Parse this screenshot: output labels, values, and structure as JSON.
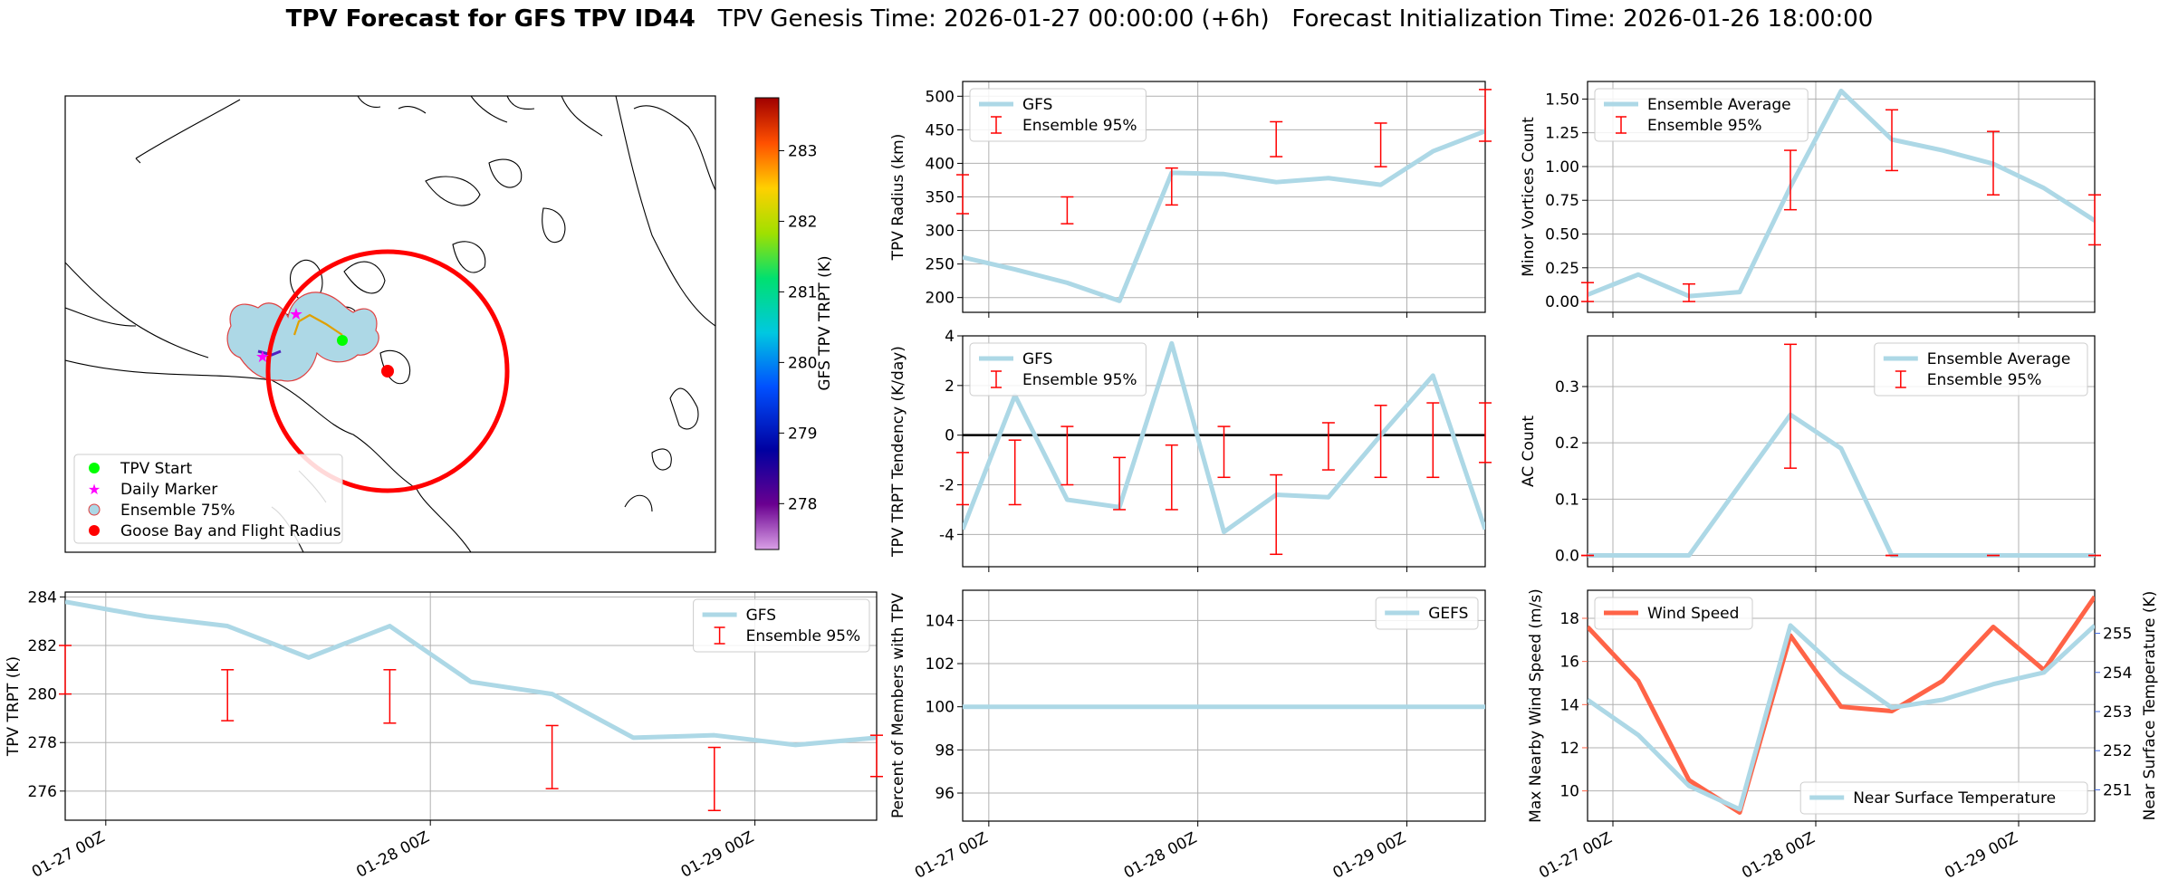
{
  "title": {
    "bold": "TPV Forecast for GFS TPV ID44",
    "rest": "   TPV Genesis Time: 2026-01-27 00:00:00 (+6h)   Forecast Initialization Time: 2026-01-26 18:00:00"
  },
  "colors": {
    "gfs_line": "#add8e6",
    "errorbar": "#ff0000",
    "wind": "#ff6347",
    "temp_axis": "#4169e1",
    "tpv_start": "#00ff00",
    "daily_marker": "#ff00ff",
    "ensemble_fill": "#add8e6",
    "goose_bay": "#ff0000",
    "zero_line": "#000000"
  },
  "map": {
    "colorbar_label": "GFS TPV TRPT (K)",
    "colorbar_ticks": [
      "278",
      "279",
      "280",
      "281",
      "282",
      "283"
    ],
    "legend": [
      "TPV Start",
      "Daily Marker",
      "Ensemble 75%",
      "Goose Bay and Flight Radius"
    ]
  },
  "x_ticks": [
    "01-27 00Z",
    "01-28 00Z",
    "01-29 00Z"
  ],
  "chart_data": [
    {
      "id": "trpt",
      "type": "line",
      "ylabel": "TPV TRPT (K)",
      "ylim": [
        274.8,
        284.2
      ],
      "yticks": [
        276,
        278,
        280,
        282,
        284
      ],
      "legend": [
        "GFS",
        "Ensemble 95%"
      ],
      "legend_pos": "top-right",
      "x": [
        -0.125,
        0.125,
        0.375,
        0.625,
        0.875,
        1.125,
        1.375,
        1.625,
        1.875,
        2.125,
        2.375
      ],
      "series": [
        {
          "name": "GFS",
          "values": [
            283.8,
            283.2,
            282.8,
            281.5,
            282.8,
            280.5,
            280.0,
            278.2,
            278.3,
            277.9,
            278.2
          ]
        }
      ],
      "errorbars": [
        {
          "x": -0.125,
          "low": 280.0,
          "high": 282.0
        },
        {
          "x": 0.375,
          "low": 278.9,
          "high": 281.0
        },
        {
          "x": 0.875,
          "low": 278.8,
          "high": 281.0
        },
        {
          "x": 1.375,
          "low": 276.1,
          "high": 278.7
        },
        {
          "x": 1.875,
          "low": 275.2,
          "high": 277.8
        },
        {
          "x": 2.375,
          "low": 276.6,
          "high": 278.3
        }
      ]
    },
    {
      "id": "radius",
      "type": "line",
      "ylabel": "TPV Radius (km)",
      "ylim": [
        178,
        522
      ],
      "yticks": [
        200,
        250,
        300,
        350,
        400,
        450,
        500
      ],
      "legend": [
        "GFS",
        "Ensemble 95%"
      ],
      "legend_pos": "top-left",
      "x": [
        -0.125,
        0.125,
        0.375,
        0.625,
        0.875,
        1.125,
        1.375,
        1.625,
        1.875,
        2.125,
        2.375
      ],
      "series": [
        {
          "name": "GFS",
          "values": [
            260,
            242,
            222,
            195,
            386,
            384,
            372,
            378,
            368,
            418,
            448
          ]
        }
      ],
      "errorbars": [
        {
          "x": -0.125,
          "low": 325,
          "high": 383
        },
        {
          "x": 0.375,
          "low": 310,
          "high": 350
        },
        {
          "x": 0.875,
          "low": 338,
          "high": 393
        },
        {
          "x": 1.375,
          "low": 410,
          "high": 462
        },
        {
          "x": 1.875,
          "low": 395,
          "high": 460
        },
        {
          "x": 2.375,
          "low": 433,
          "high": 510
        }
      ]
    },
    {
      "id": "tendency",
      "type": "line",
      "ylabel": "TPV TRPT Tendency (K/day)",
      "ylim": [
        -5.3,
        4.0
      ],
      "yticks": [
        -4,
        -2,
        0,
        2,
        4
      ],
      "legend": [
        "GFS",
        "Ensemble 95%"
      ],
      "legend_pos": "top-left",
      "hline": 0,
      "x": [
        -0.125,
        0.125,
        0.375,
        0.625,
        0.875,
        1.125,
        1.375,
        1.625,
        1.875,
        2.125,
        2.375
      ],
      "series": [
        {
          "name": "GFS",
          "values": [
            -3.8,
            1.6,
            -2.6,
            -2.9,
            3.7,
            -3.9,
            -2.4,
            -2.5,
            0.0,
            2.4,
            -3.8
          ]
        }
      ],
      "errorbars": [
        {
          "x": -0.125,
          "low": -2.8,
          "high": -0.7
        },
        {
          "x": 0.125,
          "low": -2.8,
          "high": -0.2
        },
        {
          "x": 0.375,
          "low": -2.0,
          "high": 0.35
        },
        {
          "x": 0.625,
          "low": -3.0,
          "high": -0.9
        },
        {
          "x": 0.875,
          "low": -3.0,
          "high": -0.4
        },
        {
          "x": 1.125,
          "low": -1.7,
          "high": 0.35
        },
        {
          "x": 1.375,
          "low": -4.8,
          "high": -1.6
        },
        {
          "x": 1.625,
          "low": -1.4,
          "high": 0.5
        },
        {
          "x": 1.875,
          "low": -1.7,
          "high": 1.2
        },
        {
          "x": 2.125,
          "low": -1.7,
          "high": 1.3
        },
        {
          "x": 2.375,
          "low": -1.1,
          "high": 1.3
        }
      ]
    },
    {
      "id": "percent",
      "type": "line",
      "ylabel": "Percent of Members with TPV",
      "ylim": [
        94.7,
        105.4
      ],
      "yticks": [
        96,
        98,
        100,
        102,
        104
      ],
      "legend": [
        "GEFS"
      ],
      "legend_pos": "top-right",
      "x": [
        -0.125,
        0.125,
        0.375,
        0.625,
        0.875,
        1.125,
        1.375,
        1.625,
        1.875,
        2.125,
        2.375
      ],
      "series": [
        {
          "name": "GEFS",
          "values": [
            100,
            100,
            100,
            100,
            100,
            100,
            100,
            100,
            100,
            100,
            100
          ]
        }
      ],
      "errorbars": []
    },
    {
      "id": "minor",
      "type": "line",
      "ylabel": "Minor Vortices Count",
      "ylim": [
        -0.08,
        1.63
      ],
      "yticks": [
        0.0,
        0.25,
        0.5,
        0.75,
        1.0,
        1.25,
        1.5
      ],
      "ytick_labels": [
        "0.00",
        "0.25",
        "0.50",
        "0.75",
        "1.00",
        "1.25",
        "1.50"
      ],
      "legend": [
        "Ensemble Average",
        "Ensemble 95%"
      ],
      "legend_pos": "top-left",
      "x": [
        -0.125,
        0.125,
        0.375,
        0.625,
        0.875,
        1.125,
        1.375,
        1.625,
        1.875,
        2.125,
        2.375
      ],
      "series": [
        {
          "name": "Ensemble Average",
          "values": [
            0.05,
            0.2,
            0.04,
            0.07,
            0.85,
            1.56,
            1.2,
            1.12,
            1.02,
            0.84,
            0.6
          ]
        }
      ],
      "errorbars": [
        {
          "x": -0.125,
          "low": 0.0,
          "high": 0.14
        },
        {
          "x": 0.375,
          "low": 0.0,
          "high": 0.13
        },
        {
          "x": 0.875,
          "low": 0.68,
          "high": 1.12
        },
        {
          "x": 1.375,
          "low": 0.97,
          "high": 1.42
        },
        {
          "x": 1.875,
          "low": 0.79,
          "high": 1.26
        },
        {
          "x": 2.375,
          "low": 0.42,
          "high": 0.79
        }
      ]
    },
    {
      "id": "ac",
      "type": "line",
      "ylabel": "AC Count",
      "ylim": [
        -0.02,
        0.39
      ],
      "yticks": [
        0.0,
        0.1,
        0.2,
        0.3
      ],
      "ytick_labels": [
        "0.0",
        "0.1",
        "0.2",
        "0.3"
      ],
      "legend": [
        "Ensemble Average",
        "Ensemble 95%"
      ],
      "legend_pos": "top-right",
      "x": [
        -0.125,
        0.125,
        0.375,
        0.625,
        0.875,
        1.125,
        1.375,
        1.625,
        1.875,
        2.125,
        2.375
      ],
      "series": [
        {
          "name": "Ensemble Average",
          "values": [
            0.0,
            0.0,
            0.0,
            0.125,
            0.25,
            0.19,
            0.0,
            0.0,
            0.0,
            0.0,
            0.0
          ]
        }
      ],
      "errorbars": [
        {
          "x": -0.125,
          "low": 0.0,
          "high": 0.0
        },
        {
          "x": 0.875,
          "low": 0.155,
          "high": 0.375
        },
        {
          "x": 1.375,
          "low": 0.0,
          "high": 0.0
        },
        {
          "x": 1.875,
          "low": 0.0,
          "high": 0.0
        },
        {
          "x": 2.375,
          "low": 0.0,
          "high": 0.0
        }
      ]
    },
    {
      "id": "wind",
      "type": "line",
      "ylabel": "Max Nearby Wind Speed (m/s)",
      "ylabel_right": "Near Surface Temperature (K)",
      "ylim": [
        8.6,
        19.3
      ],
      "yticks": [
        10,
        12,
        14,
        16,
        18
      ],
      "ylim_right": [
        250.2,
        256.1
      ],
      "yticks_right": [
        251,
        252,
        253,
        254,
        255
      ],
      "legend": [
        "Wind Speed"
      ],
      "legend_pos": "top-left",
      "legend_right": [
        "Near Surface Temperature"
      ],
      "legend_right_pos": "bottom-right",
      "x": [
        -0.125,
        0.125,
        0.375,
        0.625,
        0.875,
        1.125,
        1.375,
        1.625,
        1.875,
        2.125,
        2.375
      ],
      "series": [
        {
          "name": "Wind Speed",
          "axis": "left",
          "values": [
            17.6,
            15.1,
            10.5,
            9.0,
            17.2,
            13.9,
            13.7,
            15.1,
            17.6,
            15.6,
            19.0
          ]
        },
        {
          "name": "Near Surface Temperature",
          "axis": "right",
          "values": [
            253.3,
            252.4,
            251.1,
            250.5,
            255.2,
            254.0,
            253.1,
            253.3,
            253.7,
            254.0,
            255.2
          ]
        }
      ],
      "errorbars": []
    }
  ]
}
